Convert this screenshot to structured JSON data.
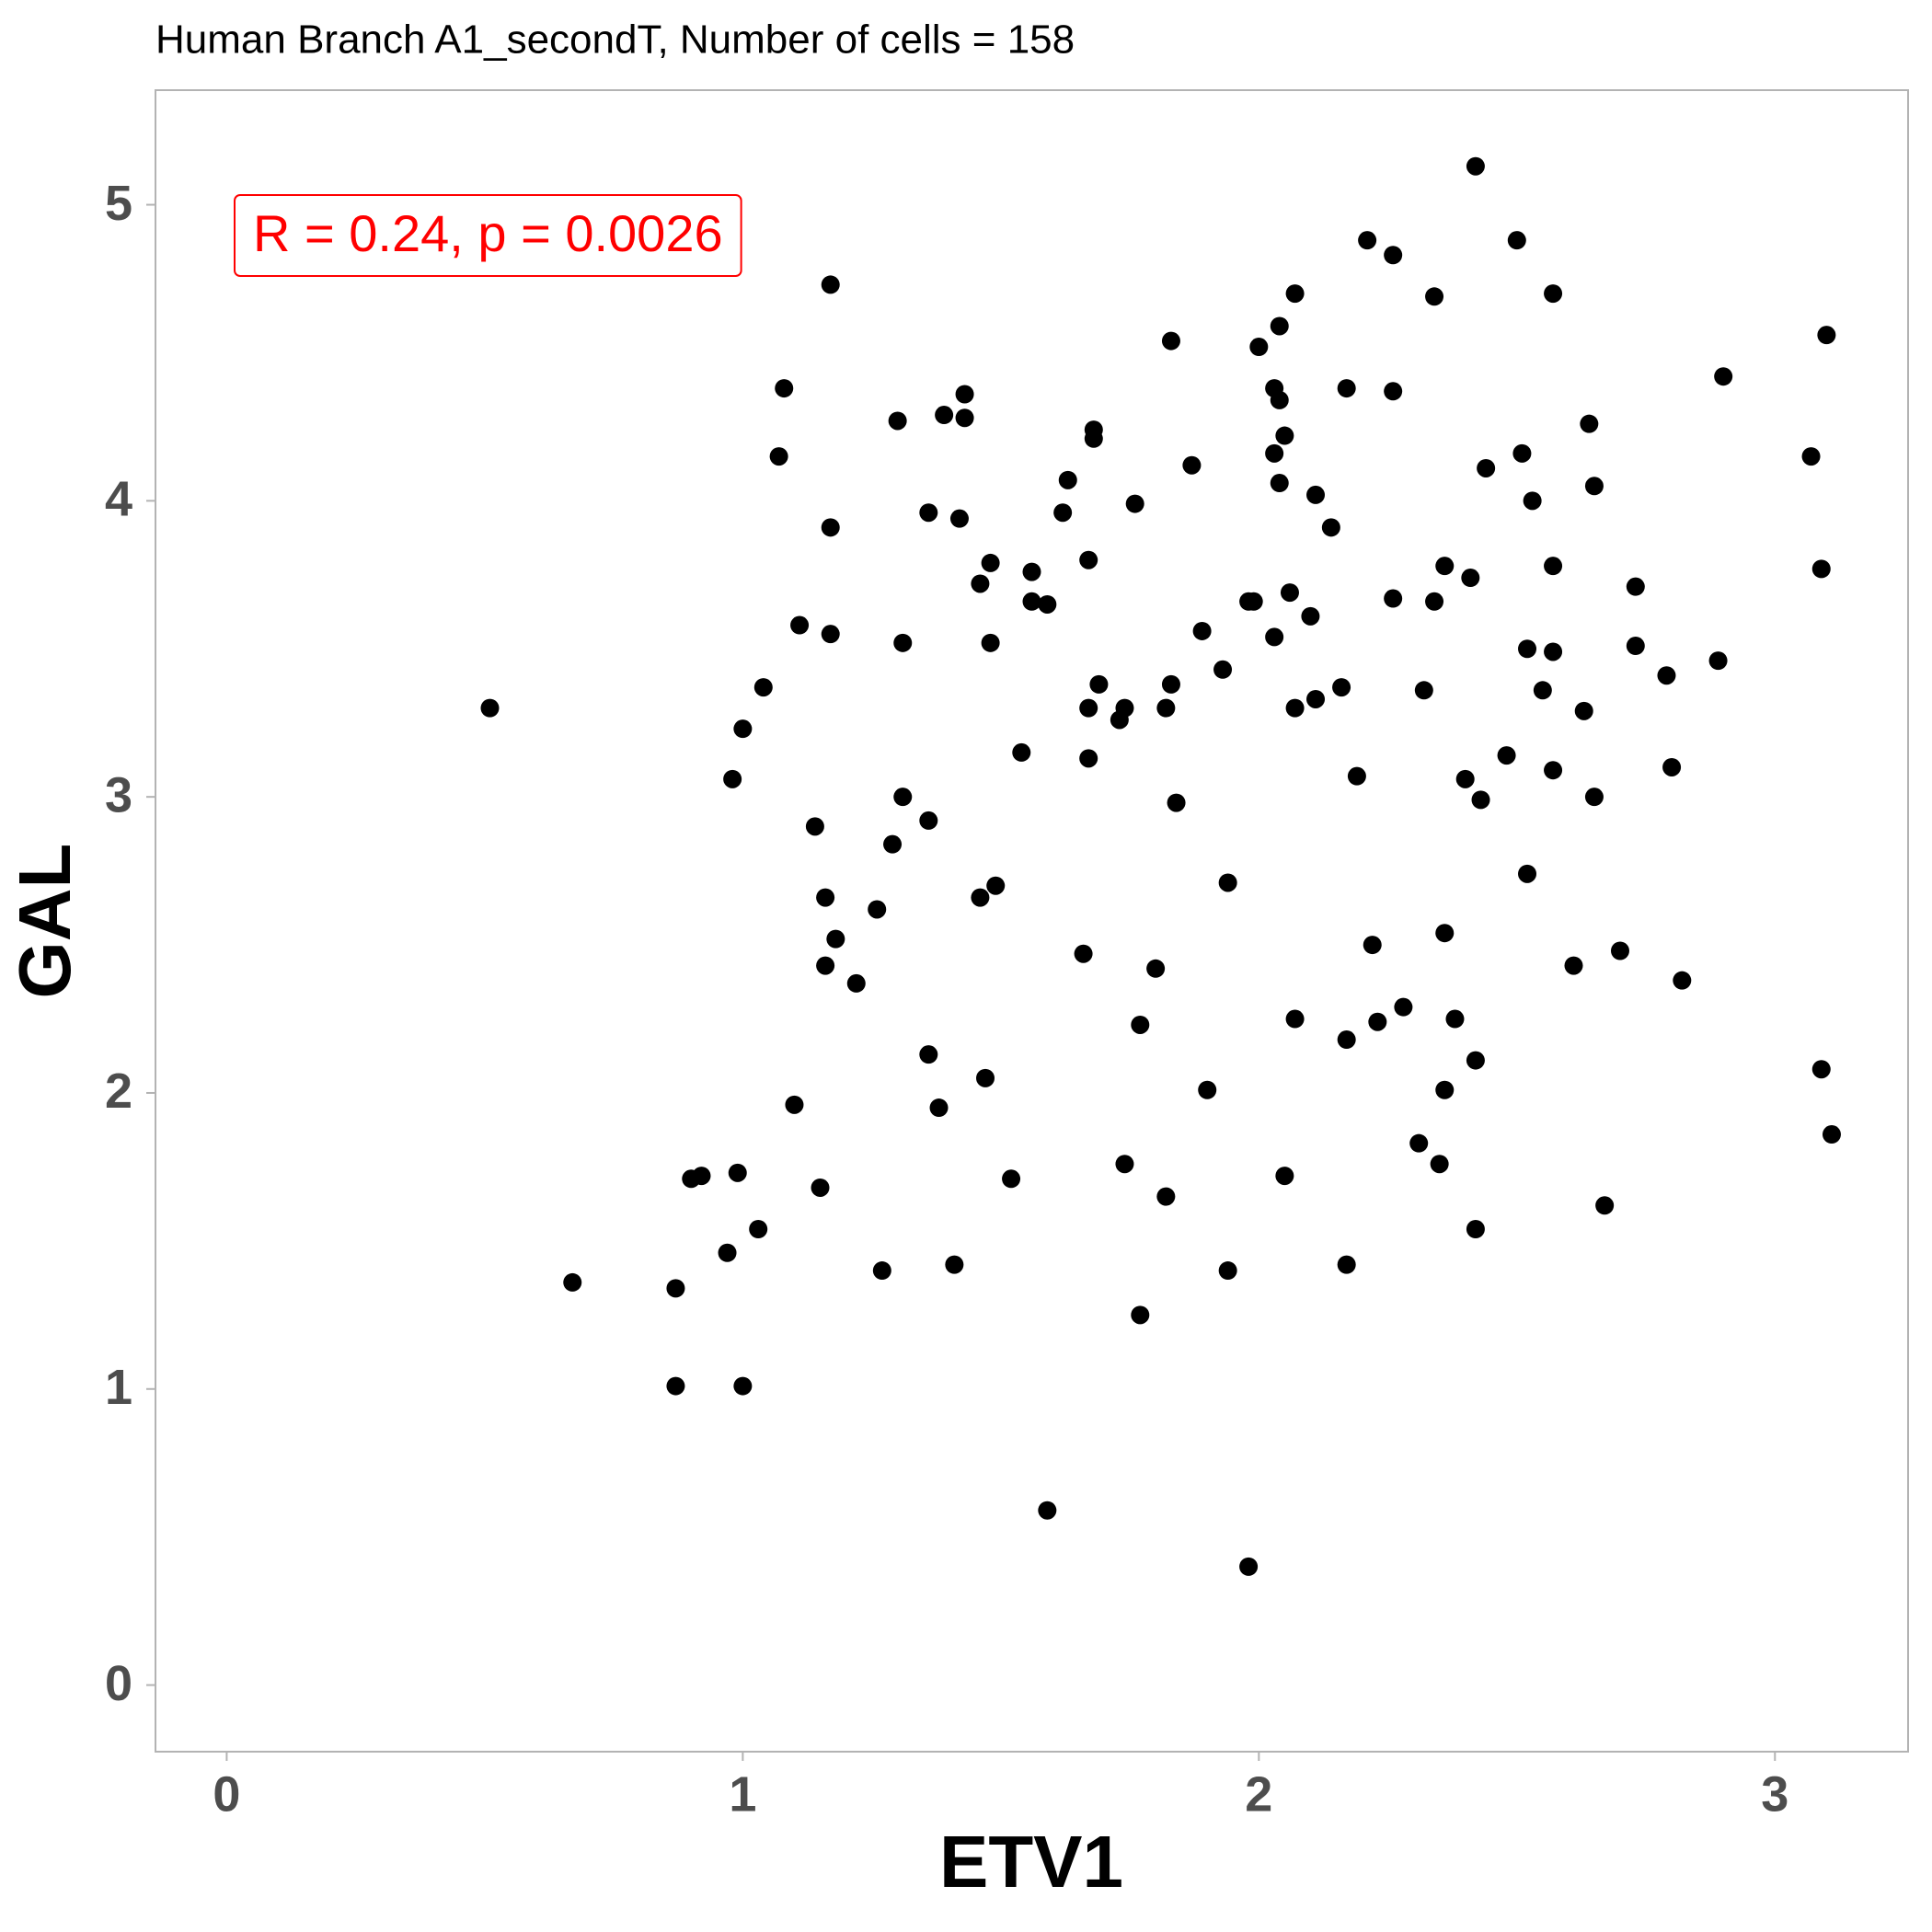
{
  "chart_data": {
    "type": "scatter",
    "title": "Human Branch A1_secondT, Number of cells = 158",
    "x_label": "ETV1",
    "y_label": "GAL",
    "annotation": "R = 0.24, p = 0.0026",
    "annotation_color": "#ff0000",
    "color": "#000000",
    "xlim": [
      -0.138,
      3.258
    ],
    "ylim": [
      -0.225,
      5.387
    ],
    "xticks": [
      0,
      1,
      2,
      3
    ],
    "yticks": [
      0,
      1,
      2,
      3,
      4,
      5
    ],
    "grid": false,
    "x": [
      0.51,
      0.67,
      0.87,
      0.87,
      0.9,
      0.92,
      0.97,
      0.98,
      0.99,
      1.0,
      1.0,
      1.03,
      1.04,
      1.07,
      1.08,
      1.1,
      1.11,
      1.14,
      1.15,
      1.16,
      1.16,
      1.17,
      1.17,
      1.17,
      1.18,
      1.22,
      1.26,
      1.27,
      1.29,
      1.3,
      1.31,
      1.31,
      1.36,
      1.36,
      1.36,
      1.38,
      1.39,
      1.41,
      1.42,
      1.43,
      1.43,
      1.46,
      1.46,
      1.47,
      1.48,
      1.48,
      1.49,
      1.52,
      1.54,
      1.56,
      1.56,
      1.59,
      1.59,
      1.62,
      1.63,
      1.66,
      1.67,
      1.67,
      1.67,
      1.68,
      1.69,
      1.68,
      1.73,
      1.74,
      1.74,
      1.76,
      1.77,
      1.77,
      1.8,
      1.82,
      1.82,
      1.83,
      1.83,
      1.84,
      1.87,
      1.89,
      1.9,
      1.93,
      1.94,
      1.94,
      1.98,
      1.98,
      1.99,
      2.0,
      2.03,
      2.03,
      2.03,
      2.04,
      2.04,
      2.04,
      2.05,
      2.05,
      2.06,
      2.07,
      2.07,
      2.07,
      2.1,
      2.11,
      2.11,
      2.14,
      2.16,
      2.17,
      2.17,
      2.17,
      2.19,
      2.21,
      2.22,
      2.23,
      2.26,
      2.26,
      2.26,
      2.28,
      2.31,
      2.32,
      2.34,
      2.34,
      2.35,
      2.36,
      2.36,
      2.36,
      2.38,
      2.4,
      2.41,
      2.42,
      2.42,
      2.42,
      2.43,
      2.44,
      2.48,
      2.5,
      2.51,
      2.52,
      2.52,
      2.53,
      2.55,
      2.57,
      2.57,
      2.57,
      2.57,
      2.61,
      2.63,
      2.65,
      2.65,
      2.64,
      2.67,
      2.7,
      2.73,
      2.73,
      2.79,
      2.8,
      2.82,
      2.89,
      2.9,
      3.07,
      3.09,
      3.09,
      3.1,
      3.11
    ],
    "values": [
      3.3,
      1.36,
      1.01,
      1.34,
      1.71,
      1.72,
      1.46,
      3.06,
      1.73,
      3.23,
      1.01,
      1.54,
      3.37,
      4.15,
      4.38,
      1.96,
      3.58,
      2.9,
      1.68,
      2.43,
      2.66,
      3.91,
      4.73,
      3.55,
      2.52,
      2.37,
      2.62,
      1.4,
      2.84,
      4.27,
      3.52,
      3.0,
      2.92,
      3.96,
      2.13,
      1.95,
      4.29,
      1.42,
      3.94,
      4.36,
      4.28,
      2.66,
      3.72,
      2.05,
      3.52,
      3.79,
      2.7,
      1.71,
      3.15,
      3.66,
      3.76,
      3.65,
      0.59,
      3.96,
      4.07,
      2.47,
      3.8,
      3.3,
      3.13,
      4.24,
      3.38,
      4.21,
      3.26,
      3.3,
      1.76,
      3.99,
      2.23,
      1.25,
      2.42,
      1.65,
      3.3,
      3.38,
      4.54,
      2.98,
      4.12,
      3.56,
      2.01,
      3.43,
      2.71,
      1.4,
      0.4,
      3.66,
      3.66,
      4.52,
      4.16,
      4.38,
      3.54,
      4.06,
      4.59,
      4.34,
      4.22,
      1.72,
      3.69,
      3.3,
      2.25,
      4.7,
      3.61,
      4.02,
      3.33,
      3.91,
      3.37,
      2.18,
      1.42,
      4.38,
      3.07,
      4.88,
      2.5,
      2.24,
      4.83,
      4.37,
      3.67,
      2.29,
      1.83,
      3.36,
      3.66,
      4.69,
      1.76,
      2.54,
      3.78,
      2.01,
      2.25,
      3.06,
      3.74,
      1.54,
      2.11,
      5.13,
      2.99,
      4.11,
      3.14,
      4.88,
      4.16,
      3.5,
      2.74,
      4.0,
      3.36,
      4.7,
      3.78,
      3.09,
      3.49,
      2.43,
      3.29,
      4.05,
      3.0,
      4.26,
      1.62,
      2.48,
      3.71,
      3.51,
      3.41,
      3.1,
      2.38,
      3.46,
      4.42,
      4.15,
      2.08,
      3.77,
      4.56,
      1.86
    ]
  }
}
